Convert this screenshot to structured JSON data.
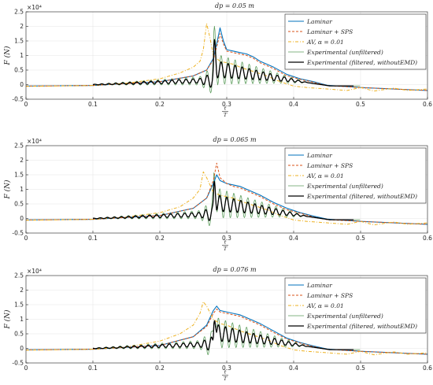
{
  "chart_data": [
    {
      "type": "line",
      "title": "dp = 0.05 m",
      "xlabel": "t/T",
      "ylabel": "F (N)",
      "y_exponent": "×10⁴",
      "xlim": [
        0,
        0.6
      ],
      "ylim": [
        -0.5,
        2.5
      ],
      "xticks": [
        "0",
        "0.1",
        "0.2",
        "0.3",
        "0.4",
        "0.5",
        "0.6"
      ],
      "yticks": [
        "-0.5",
        "0",
        "0.5",
        "1",
        "1.5",
        "2",
        "2.5"
      ],
      "grid": true,
      "legend_position": "top-right",
      "series": [
        {
          "name": "Laminar",
          "color": "#0072BD",
          "dash": "",
          "width": 1.1,
          "x": [
            0,
            0.1,
            0.2,
            0.25,
            0.27,
            0.28,
            0.285,
            0.29,
            0.295,
            0.3,
            0.31,
            0.32,
            0.33,
            0.34,
            0.35,
            0.37,
            0.39,
            0.41,
            0.43,
            0.45,
            0.5,
            0.55,
            0.6
          ],
          "y": [
            -0.05,
            -0.03,
            0.1,
            0.3,
            0.5,
            0.9,
            1.4,
            1.95,
            1.5,
            1.2,
            1.15,
            1.1,
            1.05,
            0.95,
            0.8,
            0.6,
            0.35,
            0.2,
            0.1,
            -0.02,
            -0.1,
            -0.15,
            -0.2
          ]
        },
        {
          "name": "Laminar + SPS",
          "color": "#D95319",
          "dash": "3,2",
          "width": 1.0,
          "x": [
            0,
            0.1,
            0.2,
            0.25,
            0.27,
            0.28,
            0.285,
            0.29,
            0.295,
            0.3,
            0.31,
            0.32,
            0.33,
            0.34,
            0.35,
            0.37,
            0.39,
            0.41,
            0.43,
            0.45,
            0.5,
            0.55,
            0.6
          ],
          "y": [
            -0.05,
            -0.03,
            0.1,
            0.3,
            0.5,
            0.85,
            1.3,
            1.75,
            1.4,
            1.15,
            1.1,
            1.05,
            1.0,
            0.9,
            0.75,
            0.55,
            0.3,
            0.18,
            0.08,
            -0.03,
            -0.1,
            -0.15,
            -0.2
          ]
        },
        {
          "name": "AV, α = 0.01",
          "color": "#EDB120",
          "dash": "4,2,1,2",
          "width": 1.0,
          "x": [
            0,
            0.1,
            0.15,
            0.2,
            0.23,
            0.25,
            0.26,
            0.265,
            0.27,
            0.275,
            0.28,
            0.29,
            0.3,
            0.31,
            0.32,
            0.34,
            0.36,
            0.38,
            0.4,
            0.42,
            0.45,
            0.48,
            0.5,
            0.52,
            0.55,
            0.57,
            0.6
          ],
          "y": [
            -0.06,
            -0.03,
            0.05,
            0.2,
            0.4,
            0.6,
            0.8,
            1.2,
            2.1,
            1.6,
            1.0,
            0.8,
            0.75,
            0.7,
            0.6,
            0.45,
            0.3,
            0.1,
            -0.05,
            -0.1,
            -0.15,
            -0.2,
            -0.1,
            -0.22,
            -0.12,
            -0.2,
            -0.15
          ]
        },
        {
          "name": "Experimental (unfiltered)",
          "color": "#5E9E5E",
          "dash": "",
          "width": 0.8,
          "kind": "oscillating"
        },
        {
          "name": "Experimental (filtered, withoutEMD)",
          "color": "#000000",
          "dash": "",
          "width": 1.3,
          "kind": "oscillating"
        }
      ]
    },
    {
      "type": "line",
      "title": "dp = 0.065 m",
      "xlabel": "t/T",
      "ylabel": "F (N)",
      "y_exponent": "×10⁴",
      "xlim": [
        0,
        0.6
      ],
      "ylim": [
        -0.5,
        2.5
      ],
      "xticks": [
        "0",
        "0.1",
        "0.2",
        "0.3",
        "0.4",
        "0.5",
        "0.6"
      ],
      "yticks": [
        "-0.5",
        "0",
        "0.5",
        "1",
        "1.5",
        "2",
        "2.5"
      ],
      "grid": true,
      "legend_position": "top-right",
      "series": [
        {
          "name": "Laminar",
          "color": "#0072BD",
          "dash": "",
          "width": 1.1,
          "x": [
            0,
            0.1,
            0.2,
            0.25,
            0.27,
            0.28,
            0.285,
            0.29,
            0.3,
            0.31,
            0.32,
            0.33,
            0.35,
            0.37,
            0.39,
            0.41,
            0.43,
            0.45,
            0.5,
            0.55,
            0.6
          ],
          "y": [
            -0.05,
            -0.03,
            0.1,
            0.35,
            0.7,
            1.2,
            1.5,
            1.3,
            1.2,
            1.15,
            1.1,
            1.0,
            0.8,
            0.55,
            0.35,
            0.2,
            0.08,
            -0.02,
            -0.1,
            -0.15,
            -0.2
          ]
        },
        {
          "name": "Laminar + SPS",
          "color": "#D95319",
          "dash": "3,2",
          "width": 1.0,
          "x": [
            0,
            0.1,
            0.2,
            0.25,
            0.27,
            0.28,
            0.285,
            0.29,
            0.3,
            0.31,
            0.32,
            0.33,
            0.35,
            0.37,
            0.39,
            0.41,
            0.43,
            0.45,
            0.5,
            0.55,
            0.6
          ],
          "y": [
            -0.05,
            -0.03,
            0.1,
            0.35,
            0.7,
            1.3,
            1.9,
            1.4,
            1.2,
            1.1,
            1.05,
            0.95,
            0.75,
            0.5,
            0.3,
            0.18,
            0.05,
            -0.04,
            -0.1,
            -0.15,
            -0.2
          ]
        },
        {
          "name": "AV, α = 0.01",
          "color": "#EDB120",
          "dash": "4,2,1,2",
          "width": 1.0,
          "x": [
            0,
            0.1,
            0.15,
            0.2,
            0.23,
            0.25,
            0.26,
            0.265,
            0.27,
            0.28,
            0.29,
            0.3,
            0.31,
            0.32,
            0.34,
            0.36,
            0.38,
            0.4,
            0.42,
            0.45,
            0.48,
            0.5,
            0.52,
            0.55,
            0.57,
            0.6
          ],
          "y": [
            -0.06,
            -0.03,
            0.05,
            0.2,
            0.4,
            0.7,
            1.0,
            1.6,
            1.4,
            0.9,
            0.8,
            0.75,
            0.7,
            0.6,
            0.45,
            0.3,
            0.1,
            -0.05,
            -0.1,
            -0.15,
            -0.2,
            -0.1,
            -0.22,
            -0.12,
            -0.2,
            -0.15
          ]
        },
        {
          "name": "Experimental (unfiltered)",
          "color": "#5E9E5E",
          "dash": "",
          "width": 0.8,
          "kind": "oscillating"
        },
        {
          "name": "Experimental (filtered, withoutEMD)",
          "color": "#000000",
          "dash": "",
          "width": 1.3,
          "kind": "oscillating"
        }
      ]
    },
    {
      "type": "line",
      "title": "dp = 0.076 m",
      "xlabel": "t/T",
      "ylabel": "F (N)",
      "y_exponent": "×10⁴",
      "xlim": [
        0,
        0.6
      ],
      "ylim": [
        -0.5,
        2.5
      ],
      "xticks": [
        "0",
        "0.1",
        "0.2",
        "0.3",
        "0.4",
        "0.5",
        "0.6"
      ],
      "yticks": [
        "-0.5",
        "0",
        "0.5",
        "1",
        "1.5",
        "2",
        "2.5"
      ],
      "grid": true,
      "legend_position": "top-right",
      "series": [
        {
          "name": "Laminar",
          "color": "#0072BD",
          "dash": "",
          "width": 1.1,
          "x": [
            0,
            0.1,
            0.2,
            0.25,
            0.27,
            0.28,
            0.285,
            0.29,
            0.3,
            0.31,
            0.32,
            0.33,
            0.35,
            0.37,
            0.39,
            0.41,
            0.43,
            0.45,
            0.5,
            0.55,
            0.6
          ],
          "y": [
            -0.05,
            -0.03,
            0.1,
            0.4,
            0.8,
            1.3,
            1.45,
            1.3,
            1.25,
            1.2,
            1.15,
            1.05,
            0.85,
            0.6,
            0.35,
            0.2,
            0.08,
            -0.02,
            -0.1,
            -0.15,
            -0.2
          ]
        },
        {
          "name": "Laminar + SPS",
          "color": "#D95319",
          "dash": "3,2",
          "width": 1.0,
          "x": [
            0,
            0.1,
            0.2,
            0.25,
            0.27,
            0.28,
            0.285,
            0.29,
            0.3,
            0.31,
            0.32,
            0.33,
            0.35,
            0.37,
            0.39,
            0.41,
            0.43,
            0.45,
            0.5,
            0.55,
            0.6
          ],
          "y": [
            -0.05,
            -0.03,
            0.1,
            0.4,
            0.75,
            1.2,
            1.35,
            1.25,
            1.2,
            1.15,
            1.1,
            1.0,
            0.8,
            0.55,
            0.32,
            0.18,
            0.06,
            -0.03,
            -0.1,
            -0.15,
            -0.2
          ]
        },
        {
          "name": "AV, α = 0.01",
          "color": "#EDB120",
          "dash": "4,2,1,2",
          "width": 1.0,
          "x": [
            0,
            0.1,
            0.15,
            0.2,
            0.23,
            0.25,
            0.26,
            0.265,
            0.27,
            0.28,
            0.29,
            0.3,
            0.31,
            0.32,
            0.34,
            0.36,
            0.38,
            0.4,
            0.42,
            0.45,
            0.48,
            0.5,
            0.52,
            0.55,
            0.57,
            0.6
          ],
          "y": [
            -0.06,
            -0.03,
            0.05,
            0.25,
            0.5,
            0.8,
            1.2,
            1.6,
            1.45,
            1.0,
            0.85,
            0.8,
            0.7,
            0.6,
            0.45,
            0.3,
            0.1,
            -0.05,
            -0.1,
            -0.15,
            -0.2,
            -0.1,
            -0.22,
            -0.12,
            -0.2,
            -0.15
          ]
        },
        {
          "name": "Experimental (unfiltered)",
          "color": "#5E9E5E",
          "dash": "",
          "width": 0.8,
          "kind": "oscillating"
        },
        {
          "name": "Experimental (filtered, withoutEMD)",
          "color": "#000000",
          "dash": "",
          "width": 1.3,
          "kind": "oscillating"
        }
      ]
    }
  ]
}
